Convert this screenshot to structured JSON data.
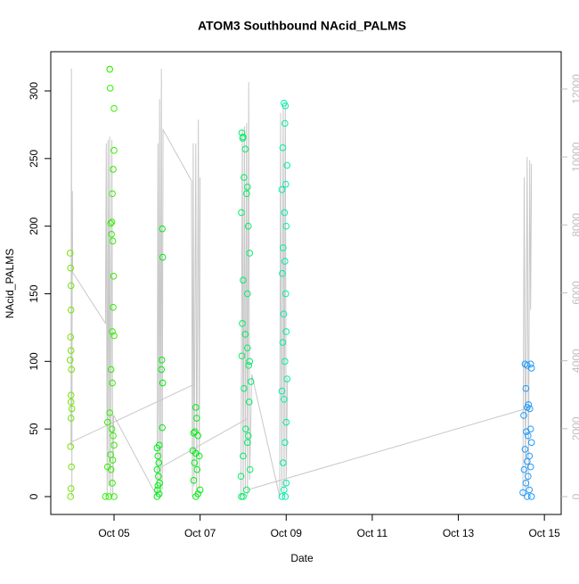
{
  "chart_data": {
    "type": "scatter",
    "title": "ATOM3 Southbound NAcid_PALMS",
    "xlabel": "Date",
    "ylabel": "NAcid_PALMS",
    "xlim": [
      3.53,
      15.39
    ],
    "xticks": [
      {
        "value": 5,
        "label": "Oct 05"
      },
      {
        "value": 7,
        "label": "Oct 07"
      },
      {
        "value": 9,
        "label": "Oct 09"
      },
      {
        "value": 11,
        "label": "Oct 11"
      },
      {
        "value": 13,
        "label": "Oct 13"
      },
      {
        "value": 15,
        "label": "Oct 15"
      }
    ],
    "ylim": [
      -13.2,
      329
    ],
    "yticks": [
      0,
      50,
      100,
      150,
      200,
      250,
      300
    ],
    "y2lim": [
      -525,
      13100
    ],
    "y2ticks": [
      0,
      2000,
      4000,
      6000,
      8000,
      10000,
      12000
    ],
    "y2color": "#bebebe",
    "series": [
      {
        "color": "#73e600",
        "x": [
          3.98,
          3.99,
          4.0,
          4.0,
          3.99,
          4.0,
          3.98,
          4.01,
          4.0,
          4.0,
          4.02,
          4.0,
          3.99,
          4.01,
          4.0,
          3.99
        ],
        "values": [
          180,
          169,
          156,
          138,
          118,
          108,
          101,
          94,
          75,
          70,
          65,
          58,
          37,
          22,
          6,
          0
        ]
      },
      {
        "color": "#33ee00",
        "x": [
          4.9,
          4.9,
          4.91,
          5.0,
          5.0,
          4.98,
          4.96,
          4.95,
          4.92,
          4.94,
          4.97,
          4.99,
          4.98,
          4.96,
          5.0,
          4.93,
          4.96,
          4.9,
          4.85,
          4.95,
          4.98,
          5.0,
          4.92,
          4.97,
          4.85,
          4.93,
          4.96,
          4.8,
          4.88,
          5.0
        ],
        "values": [
          316,
          316,
          302,
          287,
          256,
          242,
          224,
          203,
          202,
          194,
          189,
          163,
          140,
          122,
          119,
          94,
          84,
          62,
          55,
          50,
          45,
          38,
          31,
          27,
          22,
          20,
          10,
          0,
          0,
          0
        ]
      },
      {
        "color": "#00ee11",
        "x": [
          6.12,
          6.13,
          6.11,
          6.1,
          6.13,
          6.12,
          6.05,
          6.0,
          6.02,
          6.04,
          6.0,
          6.03,
          6.06,
          6.02,
          6.01,
          6.05,
          6.0,
          6.9,
          6.92,
          6.88,
          6.85,
          6.95,
          6.83,
          6.9,
          6.98,
          6.87,
          6.93,
          6.85,
          7.0,
          6.95,
          6.9
        ],
        "values": [
          198,
          177,
          101,
          94,
          84,
          51,
          38,
          36,
          30,
          25,
          20,
          15,
          10,
          8,
          5,
          2,
          0,
          66,
          58,
          48,
          47,
          45,
          34,
          32,
          30,
          25,
          20,
          12,
          5,
          2,
          0
        ]
      },
      {
        "color": "#00ee66",
        "x": [
          7.97,
          8.0,
          7.99,
          8.05,
          8.02,
          8.1,
          8.08,
          7.96,
          8.12,
          8.15,
          8.0,
          8.1,
          7.98,
          8.05,
          8.1,
          7.97,
          8.15,
          8.13,
          8.18,
          8.02,
          8.14,
          8.06,
          8.12,
          8.1,
          8.0,
          8.16,
          7.95,
          8.08,
          8.0,
          7.96
        ],
        "values": [
          269,
          266,
          265,
          257,
          236,
          229,
          224,
          210,
          200,
          180,
          160,
          150,
          128,
          120,
          110,
          104,
          100,
          97,
          85,
          80,
          70,
          50,
          45,
          40,
          30,
          20,
          15,
          5,
          0,
          0
        ]
      },
      {
        "color": "#00eeaa",
        "x": [
          8.95,
          8.98,
          8.97,
          8.92,
          9.02,
          8.99,
          8.9,
          8.96,
          9.0,
          8.93,
          8.97,
          8.91,
          8.99,
          8.94,
          9.0,
          8.92,
          8.97,
          9.02,
          8.9,
          8.95,
          9.0,
          8.97,
          8.93,
          9.0,
          8.95,
          8.9,
          8.98
        ],
        "values": [
          291,
          289,
          276,
          258,
          245,
          231,
          227,
          210,
          200,
          184,
          174,
          165,
          150,
          135,
          122,
          114,
          100,
          87,
          78,
          72,
          55,
          40,
          25,
          10,
          5,
          0,
          0
        ]
      },
      {
        "color": "#1e9bff",
        "x": [
          14.55,
          14.6,
          14.68,
          14.7,
          14.57,
          14.63,
          14.6,
          14.66,
          14.52,
          14.68,
          14.58,
          14.62,
          14.7,
          14.55,
          14.65,
          14.6,
          14.68,
          14.53,
          14.62,
          14.57,
          14.65,
          14.5,
          14.6,
          14.7
        ],
        "values": [
          98,
          97,
          98,
          95,
          80,
          68,
          66,
          65,
          60,
          50,
          48,
          45,
          40,
          35,
          30,
          26,
          22,
          20,
          15,
          10,
          5,
          3,
          0,
          0
        ]
      },
      {
        "type": "line",
        "axis": "y2",
        "color": "#c8c8c8",
        "x": [
          4.0,
          4.01,
          4.02,
          4.03,
          4.04,
          4.8,
          4.82,
          4.84,
          4.86,
          4.88,
          4.9,
          4.92,
          4.95,
          4.97,
          4.99,
          6.0,
          6.02,
          6.04,
          6.06,
          6.08,
          6.1,
          6.12,
          6.14,
          6.8,
          6.82,
          6.84,
          6.86,
          6.9,
          6.92,
          6.96,
          6.98,
          7.0,
          null,
          4.0,
          6.85,
          null,
          6.0,
          8.1,
          null,
          7.95,
          7.98,
          8.0,
          8.03,
          8.05,
          8.08,
          8.1,
          8.13,
          8.15,
          8.2,
          8.85,
          8.87,
          8.9,
          8.93,
          8.95,
          8.98,
          9.0,
          9.03,
          null,
          8.1,
          14.6,
          null,
          14.5,
          14.53,
          14.56,
          14.6,
          14.63,
          14.66,
          14.68,
          14.7
        ],
        "values": [
          1500,
          12600,
          0,
          9000,
          6600,
          5100,
          10400,
          0,
          10500,
          300,
          10600,
          0,
          10500,
          0,
          2400,
          0,
          10400,
          500,
          11700,
          0,
          12600,
          200,
          10800,
          9300,
          0,
          10400,
          300,
          10400,
          0,
          11100,
          200,
          9400,
          null,
          1600,
          3300,
          null,
          800,
          2300,
          null,
          0,
          10800,
          0,
          10900,
          200,
          11000,
          0,
          12200,
          500,
          3600,
          0,
          11300,
          200,
          11500,
          0,
          11600,
          300,
          3500,
          null,
          200,
          2600,
          null,
          0,
          9400,
          0,
          10000,
          200,
          9900,
          5500,
          9800
        ]
      }
    ]
  }
}
